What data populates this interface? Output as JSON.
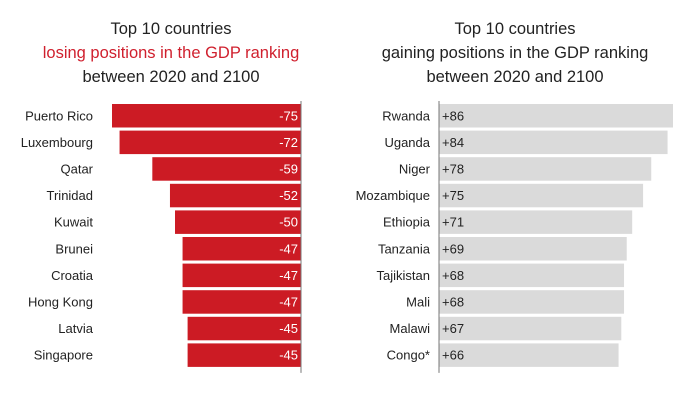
{
  "chart_data": [
    {
      "type": "bar",
      "orientation": "horizontal",
      "title": [
        "Top 10 countries",
        "losing positions in the GDP ranking",
        "between 2020 and 2100"
      ],
      "categories": [
        "Puerto Rico",
        "Luxembourg",
        "Qatar",
        "Trinidad",
        "Kuwait",
        "Brunei",
        "Croatia",
        "Hong Kong",
        "Latvia",
        "Singapore"
      ],
      "values": [
        -75,
        -72,
        -59,
        -52,
        -50,
        -47,
        -47,
        -47,
        -45,
        -45
      ],
      "labels": [
        "-75",
        "-72",
        "-59",
        "-52",
        "-50",
        "-47",
        "-47",
        "-47",
        "-45",
        "-45"
      ],
      "xlim": [
        -75,
        0
      ],
      "color": "#cc1b24",
      "label_color": "#ffffff"
    },
    {
      "type": "bar",
      "orientation": "horizontal",
      "title": [
        "Top 10 countries",
        "gaining positions in the GDP ranking",
        "between 2020 and 2100"
      ],
      "categories": [
        "Rwanda",
        "Uganda",
        "Niger",
        "Mozambique",
        "Ethiopia",
        "Tanzania",
        "Tajikistan",
        "Mali",
        "Malawi",
        "Congo*"
      ],
      "values": [
        86,
        84,
        78,
        75,
        71,
        69,
        68,
        68,
        67,
        66
      ],
      "labels": [
        "+86",
        "+84",
        "+78",
        "+75",
        "+71",
        "+69",
        "+68",
        "+68",
        "+67",
        "+66"
      ],
      "xlim": [
        0,
        86
      ],
      "color": "#dadada",
      "label_color": "#222222"
    }
  ],
  "colors": {
    "accent_text": "#d0202e",
    "axis": "#777777"
  }
}
